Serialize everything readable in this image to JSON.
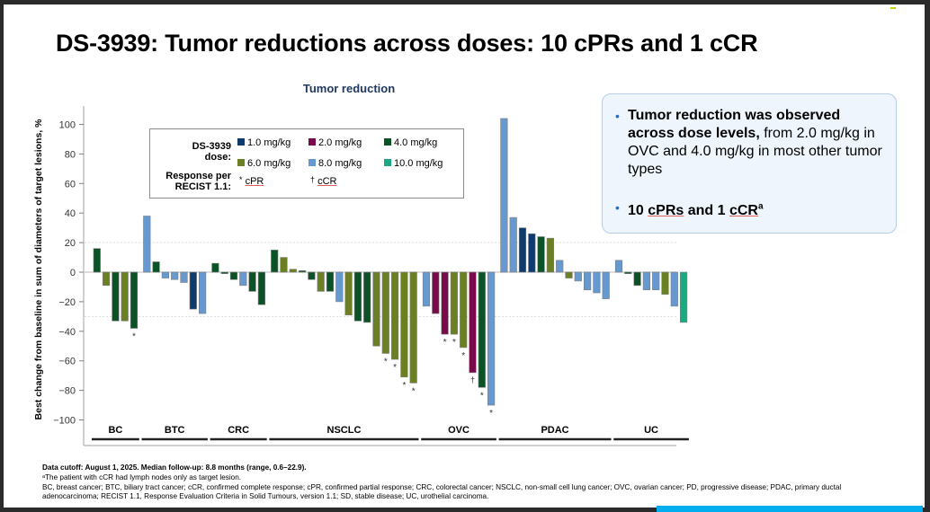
{
  "slide": {
    "title": "DS-3939: Tumor reductions across doses: 10 cPRs and 1 cCR"
  },
  "legend": {
    "dose_label_line1": "DS-3939",
    "dose_label_line2": "dose:",
    "response_label_line1": "Response per",
    "response_label_line2": "RECIST 1.1:",
    "doses": [
      {
        "key": "1.0",
        "label": "1.0 mg/kg",
        "color": "#0f3a6e"
      },
      {
        "key": "2.0",
        "label": "2.0 mg/kg",
        "color": "#7a0b4a"
      },
      {
        "key": "4.0",
        "label": "4.0 mg/kg",
        "color": "#0b5226"
      },
      {
        "key": "6.0",
        "label": "6.0 mg/kg",
        "color": "#6b7f23"
      },
      {
        "key": "8.0",
        "label": "8.0 mg/kg",
        "color": "#6699d0"
      },
      {
        "key": "10.0",
        "label": "10.0 mg/kg",
        "color": "#1aaa82"
      }
    ],
    "responses": [
      {
        "marker": "*",
        "label": "cPR"
      },
      {
        "marker": "†",
        "label": "cCR"
      }
    ]
  },
  "callout": {
    "bullet1_bold": "Tumor reduction was observed across dose levels,",
    "bullet1_rest": " from 2.0 mg/kg in OVC and 4.0 mg/kg in most other tumor types",
    "bullet2_a": "10 ",
    "bullet2_b": "cPRs",
    "bullet2_c": " and 1 ",
    "bullet2_d": "cCR",
    "bullet2_sup": "a"
  },
  "footnotes": {
    "line1": "Data cutoff: August 1, 2025. Median follow-up: 8.8 months (range, 0.6–22.9).",
    "line2": "ᵃThe patient with cCR had lymph nodes only as target lesion.",
    "line3": "BC, breast cancer; BTC, biliary tract cancer; cCR, confirmed complete response; cPR, confirmed partial response; CRC, colorectal cancer; NSCLC, non-small cell lung cancer; OVC, ovarian cancer; PD, progressive disease; PDAC, primary ductal",
    "line4": "adenocarcinoma; RECIST 1.1, Response Evaluation Criteria in Solid Tumours, version 1.1; SD, stable disease; UC, urothelial carcinoma."
  },
  "chart_data": {
    "type": "bar",
    "title": "Tumor reduction",
    "xlabel": "",
    "ylabel": "Best change from baseline in sum of diameters of target lesions, %",
    "ylim": [
      -110,
      110
    ],
    "yticks": [
      100,
      80,
      60,
      40,
      20,
      0,
      -20,
      -40,
      -60,
      -80,
      -100
    ],
    "reference_lines": [
      20,
      -30
    ],
    "legend_position": "top-left",
    "groups": [
      {
        "name": "BC",
        "bars": [
          {
            "value": 16,
            "dose": "4.0"
          },
          {
            "value": -9,
            "dose": "6.0"
          },
          {
            "value": -33,
            "dose": "4.0"
          },
          {
            "value": -33,
            "dose": "6.0"
          },
          {
            "value": -38,
            "dose": "4.0",
            "response": "*"
          }
        ]
      },
      {
        "name": "BTC",
        "bars": [
          {
            "value": 38,
            "dose": "8.0"
          },
          {
            "value": 7,
            "dose": "4.0"
          },
          {
            "value": -4,
            "dose": "8.0"
          },
          {
            "value": -5,
            "dose": "8.0"
          },
          {
            "value": -7,
            "dose": "8.0"
          },
          {
            "value": -25,
            "dose": "1.0"
          },
          {
            "value": -28,
            "dose": "8.0"
          }
        ]
      },
      {
        "name": "CRC",
        "bars": [
          {
            "value": 6,
            "dose": "4.0"
          },
          {
            "value": -1,
            "dose": "4.0"
          },
          {
            "value": -5,
            "dose": "4.0"
          },
          {
            "value": -9,
            "dose": "8.0"
          },
          {
            "value": -13,
            "dose": "4.0"
          },
          {
            "value": -22,
            "dose": "4.0"
          }
        ]
      },
      {
        "name": "NSCLC",
        "bars": [
          {
            "value": 15,
            "dose": "4.0"
          },
          {
            "value": 10,
            "dose": "6.0"
          },
          {
            "value": 2,
            "dose": "6.0"
          },
          {
            "value": 1,
            "dose": "4.0"
          },
          {
            "value": -5,
            "dose": "4.0"
          },
          {
            "value": -13,
            "dose": "6.0"
          },
          {
            "value": -13,
            "dose": "4.0"
          },
          {
            "value": -20,
            "dose": "8.0"
          },
          {
            "value": -29,
            "dose": "6.0"
          },
          {
            "value": -33,
            "dose": "4.0"
          },
          {
            "value": -34,
            "dose": "4.0"
          },
          {
            "value": -50,
            "dose": "6.0"
          },
          {
            "value": -55,
            "dose": "6.0",
            "response": "*"
          },
          {
            "value": -59,
            "dose": "6.0",
            "response": "*"
          },
          {
            "value": -71,
            "dose": "6.0",
            "response": "*"
          },
          {
            "value": -75,
            "dose": "6.0",
            "response": "*"
          }
        ]
      },
      {
        "name": "OVC",
        "bars": [
          {
            "value": -23,
            "dose": "8.0"
          },
          {
            "value": -28,
            "dose": "2.0"
          },
          {
            "value": -42,
            "dose": "2.0",
            "response": "*"
          },
          {
            "value": -42,
            "dose": "6.0",
            "response": "*"
          },
          {
            "value": -51,
            "dose": "6.0",
            "response": "*"
          },
          {
            "value": -68,
            "dose": "2.0",
            "response": "†"
          },
          {
            "value": -78,
            "dose": "4.0",
            "response": "*"
          },
          {
            "value": -90,
            "dose": "8.0",
            "response": "*"
          }
        ]
      },
      {
        "name": "PDAC",
        "bars": [
          {
            "value": 104,
            "dose": "8.0"
          },
          {
            "value": 37,
            "dose": "8.0"
          },
          {
            "value": 30,
            "dose": "1.0"
          },
          {
            "value": 26,
            "dose": "1.0"
          },
          {
            "value": 24,
            "dose": "4.0"
          },
          {
            "value": 23,
            "dose": "6.0"
          },
          {
            "value": 8,
            "dose": "8.0"
          },
          {
            "value": -4,
            "dose": "6.0"
          },
          {
            "value": -6,
            "dose": "8.0"
          },
          {
            "value": -12,
            "dose": "8.0"
          },
          {
            "value": -14,
            "dose": "8.0"
          },
          {
            "value": -18,
            "dose": "8.0"
          }
        ]
      },
      {
        "name": "UC",
        "bars": [
          {
            "value": 8,
            "dose": "8.0"
          },
          {
            "value": -1,
            "dose": "4.0"
          },
          {
            "value": -9,
            "dose": "4.0"
          },
          {
            "value": -12,
            "dose": "8.0"
          },
          {
            "value": -12,
            "dose": "8.0"
          },
          {
            "value": -15,
            "dose": "6.0"
          },
          {
            "value": -23,
            "dose": "8.0"
          },
          {
            "value": -34,
            "dose": "10.0"
          }
        ]
      }
    ]
  }
}
